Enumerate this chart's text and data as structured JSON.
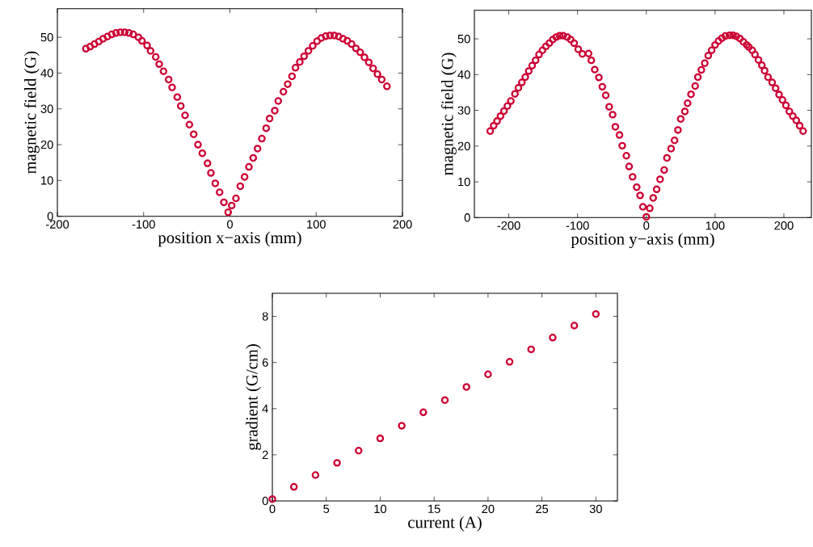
{
  "chart_data": [
    {
      "type": "scatter",
      "xlabel": "position x−axis (mm)",
      "ylabel": "magnetic field (G)",
      "marker": "circle",
      "color": "#cc0033",
      "xlim": [
        -200,
        200
      ],
      "ylim": [
        0,
        58
      ],
      "xticks": [
        -200,
        -100,
        0,
        100,
        200
      ],
      "yticks": [
        0,
        10,
        20,
        30,
        40,
        50
      ],
      "x": [
        -167,
        -162,
        -157,
        -152,
        -147,
        -142,
        -137,
        -132,
        -127,
        -122,
        -117,
        -112,
        -106,
        -102,
        -96,
        -92,
        -86,
        -82,
        -77,
        -71,
        -67,
        -61,
        -57,
        -52,
        -47,
        -42,
        -37,
        -32,
        -26,
        -22,
        -17,
        -12,
        -7,
        -2,
        2,
        7,
        12,
        17,
        22,
        27,
        32,
        37,
        42,
        46,
        52,
        56,
        62,
        67,
        72,
        76,
        81,
        86,
        91,
        96,
        101,
        106,
        111,
        116,
        121,
        126,
        131,
        136,
        141,
        146,
        151,
        156,
        161,
        166,
        171,
        176,
        182
      ],
      "values": [
        46.8,
        47.4,
        48.1,
        48.8,
        49.6,
        50.2,
        50.8,
        51.2,
        51.4,
        51.4,
        51.2,
        50.8,
        50.0,
        49.0,
        47.7,
        46.2,
        44.5,
        42.5,
        40.5,
        38.2,
        36.0,
        33.3,
        30.8,
        28.2,
        25.6,
        22.9,
        20.0,
        17.6,
        14.8,
        12.1,
        9.2,
        6.7,
        3.9,
        1.1,
        3.0,
        5.0,
        8.4,
        11.0,
        13.8,
        16.3,
        18.9,
        21.7,
        24.6,
        27.3,
        29.5,
        32.2,
        34.8,
        36.9,
        39.1,
        41.5,
        43.1,
        44.7,
        46.2,
        47.6,
        48.9,
        49.8,
        50.3,
        50.5,
        50.5,
        50.2,
        49.6,
        49.0,
        48.1,
        46.9,
        45.8,
        44.4,
        43.0,
        41.3,
        39.7,
        38.2,
        36.3
      ]
    },
    {
      "type": "scatter",
      "xlabel": "position y−axis (mm)",
      "ylabel": "magnetic field (G)",
      "marker": "circle",
      "color": "#cc0033",
      "xlim": [
        -250,
        240
      ],
      "ylim": [
        0,
        58
      ],
      "xticks": [
        -200,
        -100,
        0,
        100,
        200
      ],
      "yticks": [
        0,
        10,
        20,
        30,
        40,
        50
      ],
      "x": [
        -227,
        -222,
        -217,
        -212,
        -207,
        -202,
        -197,
        -191,
        -186,
        -181,
        -176,
        -171,
        -166,
        -161,
        -156,
        -151,
        -146,
        -141,
        -136,
        -131,
        -126,
        -121,
        -115,
        -110,
        -105,
        -99,
        -93,
        -84,
        -80,
        -75,
        -69,
        -64,
        -59,
        -54,
        -49,
        -45,
        -39,
        -35,
        -29,
        -25,
        -20,
        -14,
        -9,
        -5,
        0,
        5,
        10,
        15,
        20,
        26,
        30,
        36,
        41,
        46,
        50,
        56,
        60,
        65,
        71,
        75,
        80,
        85,
        90,
        95,
        100,
        105,
        110,
        115,
        121,
        126,
        131,
        136,
        141,
        146,
        149,
        154,
        158,
        163,
        168,
        172,
        177,
        183,
        188,
        193,
        198,
        203,
        208,
        213,
        218,
        223,
        228
      ],
      "values": [
        24.2,
        25.7,
        27.0,
        28.4,
        29.8,
        31.2,
        32.6,
        34.6,
        36.3,
        37.8,
        39.3,
        41.0,
        42.5,
        44.0,
        45.6,
        46.8,
        47.9,
        48.8,
        49.8,
        50.5,
        50.9,
        50.9,
        50.5,
        49.8,
        48.8,
        47.1,
        45.8,
        45.9,
        44.0,
        41.4,
        39.2,
        36.6,
        34.2,
        31.0,
        28.8,
        25.4,
        23.1,
        20.1,
        17.3,
        14.3,
        11.4,
        8.5,
        6.2,
        3.0,
        0.2,
        2.6,
        5.5,
        7.9,
        10.7,
        13.3,
        16.7,
        19.3,
        21.6,
        24.5,
        27.6,
        29.7,
        32.0,
        34.5,
        36.8,
        39.3,
        41.3,
        43.2,
        45.3,
        46.8,
        48.3,
        49.4,
        50.2,
        50.8,
        51.0,
        51.0,
        50.7,
        50.1,
        49.2,
        48.3,
        47.7,
        46.8,
        45.6,
        44.1,
        42.6,
        41.1,
        39.3,
        37.8,
        36.2,
        34.4,
        32.9,
        31.4,
        29.7,
        28.4,
        27.2,
        25.7,
        24.2
      ]
    },
    {
      "type": "scatter",
      "xlabel": "current (A)",
      "ylabel": "gradient (G/cm)",
      "marker": "circle",
      "color": "#cc0033",
      "xlim": [
        0,
        32
      ],
      "ylim": [
        0,
        9
      ],
      "xticks": [
        0,
        5,
        10,
        15,
        20,
        25,
        30
      ],
      "yticks": [
        0,
        2,
        4,
        6,
        8
      ],
      "x": [
        0,
        2,
        4,
        6,
        8,
        10,
        12,
        14,
        16,
        18,
        20,
        22,
        24,
        26,
        28,
        30
      ],
      "values": [
        0.08,
        0.61,
        1.12,
        1.65,
        2.18,
        2.71,
        3.26,
        3.84,
        4.37,
        4.94,
        5.49,
        6.03,
        6.57,
        7.08,
        7.6,
        8.1
      ]
    }
  ]
}
